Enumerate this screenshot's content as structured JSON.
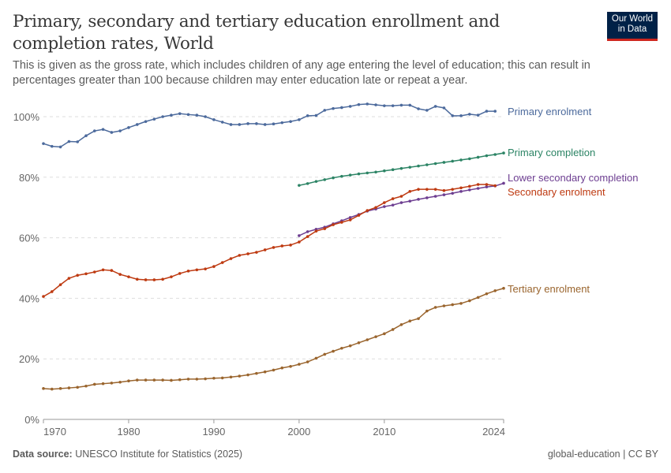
{
  "header": {
    "title": "Primary, secondary and tertiary education enrollment and completion rates, World",
    "subtitle": "This is given as the gross rate, which includes children of any age entering the level of education; this can result in percentages greater than 100 because children may enter education late or repeat a year.",
    "logo_text": "Our World in Data"
  },
  "footer": {
    "source_label": "Data source:",
    "source": "UNESCO Institute for Statistics (2025)",
    "license": "global-education | CC BY"
  },
  "chart_data": {
    "type": "line",
    "title": "Primary, secondary and tertiary education enrollment and completion rates, World",
    "xlabel": "",
    "ylabel": "",
    "xlim": [
      1970,
      2024
    ],
    "ylim": [
      0,
      100
    ],
    "y_ticks": [
      "0%",
      "20%",
      "40%",
      "60%",
      "80%",
      "100%"
    ],
    "y_tick_values": [
      0,
      20,
      40,
      60,
      80,
      100
    ],
    "x_ticks": [
      "1970",
      "1980",
      "1990",
      "2000",
      "2010",
      "2024"
    ],
    "x_tick_values": [
      1970,
      1980,
      1990,
      2000,
      2010,
      2024
    ],
    "grid": "horizontal dashed",
    "legend": "right, inline labels",
    "series": [
      {
        "name": "Primary enrolment",
        "color": "#4c6a9c",
        "start": 1970,
        "values": [
          91.1,
          90.2,
          90.0,
          91.8,
          91.7,
          93.7,
          95.3,
          95.8,
          94.8,
          95.3,
          96.4,
          97.4,
          98.4,
          99.2,
          100.0,
          100.5,
          101.0,
          100.7,
          100.5,
          100.0,
          99.0,
          98.2,
          97.4,
          97.4,
          97.7,
          97.7,
          97.4,
          97.6,
          98.0,
          98.4,
          99.0,
          100.3,
          100.4,
          102.1,
          102.7,
          103.0,
          103.4,
          104.0,
          104.2,
          103.9,
          103.6,
          103.6,
          103.8,
          103.8,
          102.6,
          102.1,
          103.4,
          102.9,
          100.3,
          100.3,
          100.8,
          100.5,
          101.8,
          101.8
        ]
      },
      {
        "name": "Primary completion",
        "color": "#2c8465",
        "start": 2000,
        "values": [
          77.3,
          77.9,
          78.6,
          79.2,
          79.8,
          80.3,
          80.7,
          81.1,
          81.4,
          81.7,
          82.1,
          82.5,
          82.9,
          83.3,
          83.7,
          84.1,
          84.5,
          84.9,
          85.3,
          85.7,
          86.1,
          86.6,
          87.1,
          87.5,
          88.0
        ]
      },
      {
        "name": "Lower secondary completion",
        "color": "#6d3e91",
        "start": 2000,
        "values": [
          60.7,
          62.0,
          62.8,
          63.5,
          64.6,
          65.6,
          66.7,
          67.7,
          68.8,
          69.5,
          70.3,
          70.8,
          71.6,
          72.1,
          72.7,
          73.2,
          73.7,
          74.2,
          74.7,
          75.3,
          75.8,
          76.3,
          76.8,
          77.1,
          78.0
        ]
      },
      {
        "name": "Secondary enrolment",
        "color": "#be3a11",
        "start": 1970,
        "values": [
          40.6,
          42.2,
          44.5,
          46.6,
          47.6,
          48.1,
          48.7,
          49.4,
          49.2,
          47.9,
          47.1,
          46.3,
          46.1,
          46.1,
          46.3,
          47.1,
          48.2,
          49.0,
          49.4,
          49.7,
          50.5,
          51.8,
          53.1,
          54.2,
          54.7,
          55.2,
          56.0,
          56.8,
          57.3,
          57.6,
          58.6,
          60.4,
          62.2,
          63.0,
          64.3,
          65.1,
          65.9,
          67.4,
          69.0,
          70.0,
          71.6,
          72.9,
          73.7,
          75.3,
          76.0,
          76.0,
          76.0,
          75.6,
          76.0,
          76.5,
          77.0,
          77.6,
          77.6,
          77.2
        ]
      },
      {
        "name": "Tertiary enrolment",
        "color": "#9a652e",
        "start": 1970,
        "values": [
          10.2,
          10.0,
          10.2,
          10.4,
          10.6,
          11.0,
          11.6,
          11.8,
          12.0,
          12.3,
          12.7,
          13.0,
          13.0,
          13.0,
          13.0,
          12.9,
          13.1,
          13.3,
          13.3,
          13.4,
          13.6,
          13.7,
          14.0,
          14.3,
          14.7,
          15.2,
          15.7,
          16.3,
          17.0,
          17.5,
          18.2,
          19.0,
          20.2,
          21.5,
          22.5,
          23.5,
          24.3,
          25.3,
          26.3,
          27.3,
          28.3,
          29.7,
          31.3,
          32.5,
          33.3,
          35.8,
          37.0,
          37.5,
          37.9,
          38.3,
          39.2,
          40.3,
          41.5,
          42.5,
          43.3
        ]
      }
    ]
  }
}
